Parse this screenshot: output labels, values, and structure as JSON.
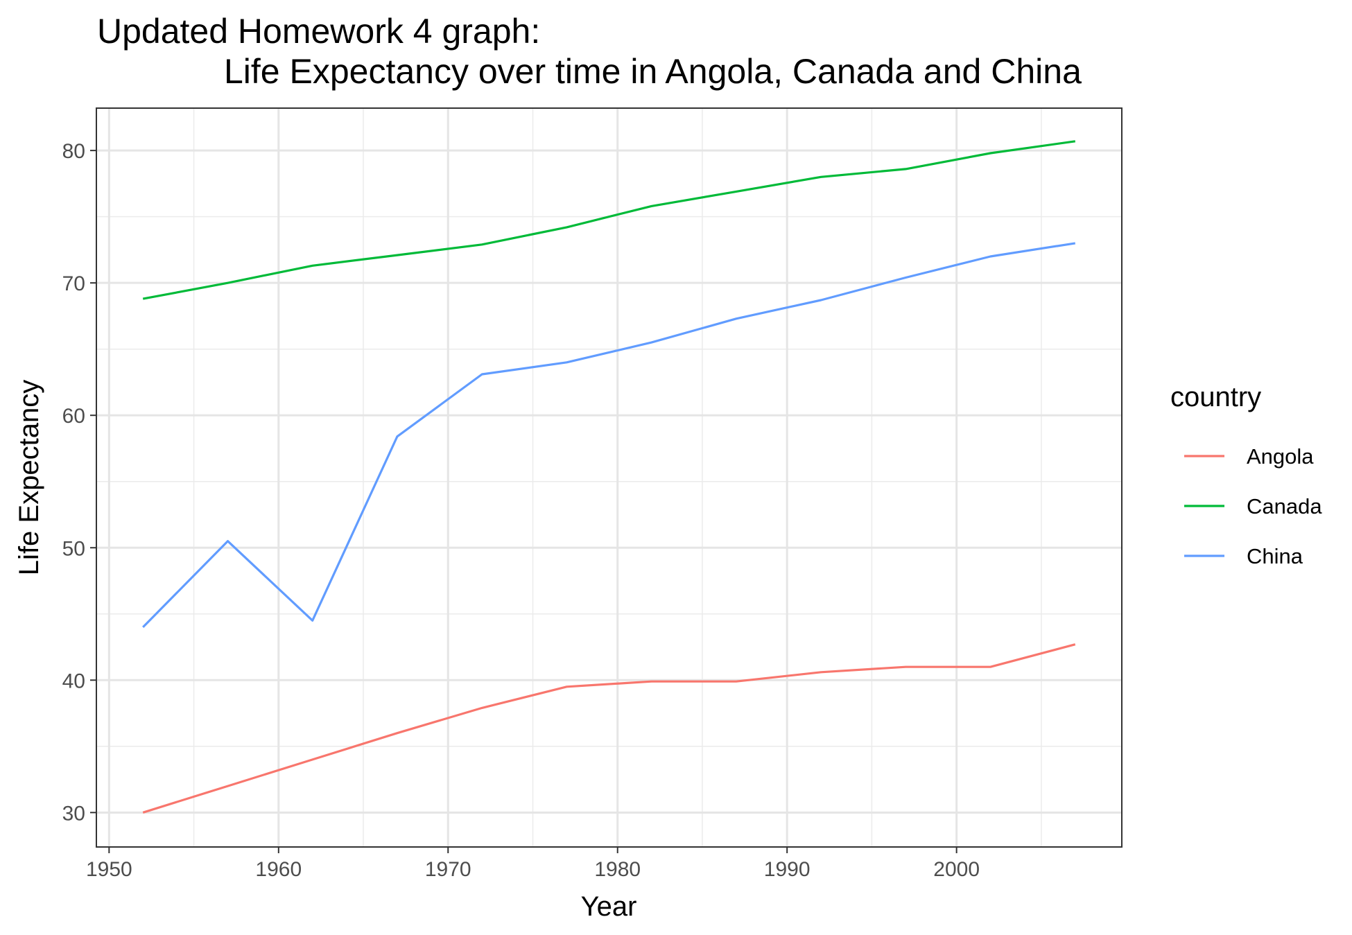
{
  "chart_data": {
    "type": "line",
    "title": "Updated Homework 4 graph:",
    "subtitle": "Life Expectancy over time in Angola, Canada and China",
    "xlabel": "Year",
    "ylabel": "Life Expectancy",
    "xlim": [
      1949.25,
      2009.75
    ],
    "ylim": [
      27.4,
      83.2
    ],
    "x_major_ticks": [
      1950,
      1960,
      1970,
      1980,
      1990,
      2000
    ],
    "x_minor_ticks": [
      1955,
      1965,
      1975,
      1985,
      1995,
      2005
    ],
    "y_major_ticks": [
      30,
      40,
      50,
      60,
      70,
      80
    ],
    "y_minor_ticks": [
      35,
      45,
      55,
      65,
      75
    ],
    "grid": true,
    "legend": {
      "title": "country",
      "position": "right"
    },
    "x": [
      1952,
      1957,
      1962,
      1967,
      1972,
      1977,
      1982,
      1987,
      1992,
      1997,
      2002,
      2007
    ],
    "series": [
      {
        "name": "Angola",
        "color": "#F8766D",
        "values": [
          30.0,
          32.0,
          34.0,
          36.0,
          37.9,
          39.5,
          39.9,
          39.9,
          40.6,
          41.0,
          41.0,
          42.7
        ]
      },
      {
        "name": "Canada",
        "color": "#00BA38",
        "values": [
          68.8,
          70.0,
          71.3,
          72.1,
          72.9,
          74.2,
          75.8,
          76.9,
          78.0,
          78.6,
          79.8,
          80.7
        ]
      },
      {
        "name": "China",
        "color": "#619CFF",
        "values": [
          44.0,
          50.5,
          44.5,
          58.4,
          63.1,
          64.0,
          65.5,
          67.3,
          68.7,
          70.4,
          72.0,
          73.0
        ]
      }
    ]
  }
}
